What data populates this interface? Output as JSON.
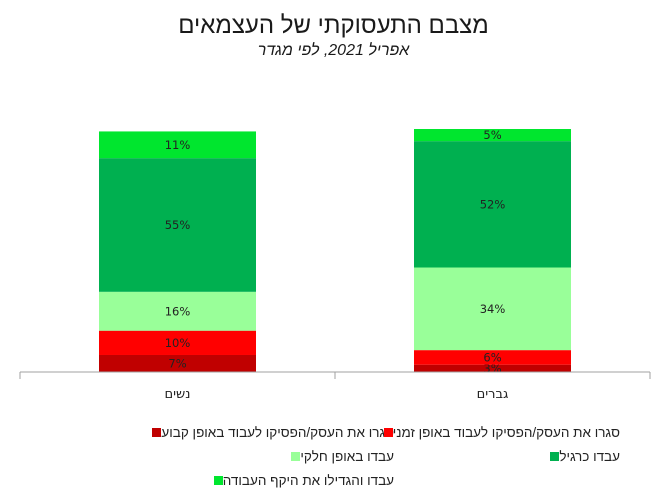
{
  "chart_data": {
    "type": "bar",
    "stacked": true,
    "title": "מצבם התעסוקתי של העצמאים",
    "subtitle": "אפריל 2021, לפי מגדר",
    "categories": [
      "נשים",
      "גברים"
    ],
    "ylim": [
      0,
      100
    ],
    "series": [
      {
        "name": "סגרו את העסק/הפסיקו לעבוד באופן קבוע",
        "color": "#c00000",
        "values": [
          7,
          3
        ],
        "labels": [
          "7%",
          "3%"
        ]
      },
      {
        "name": "סגרו את העסק/הפסיקו לעבוד באופן זמני",
        "color": "#ff0000",
        "values": [
          10,
          6
        ],
        "labels": [
          "10%",
          "6%"
        ]
      },
      {
        "name": "עבדו באופן חלקי",
        "color": "#99ff99",
        "values": [
          16,
          34
        ],
        "labels": [
          "16%",
          "34%"
        ]
      },
      {
        "name": "עבדו כרגיל",
        "color": "#00b050",
        "values": [
          55,
          52
        ],
        "labels": [
          "55%",
          "52%"
        ]
      },
      {
        "name": "עבדו והגדילו את היקף העבודה",
        "color": "#00e62e",
        "values": [
          11,
          5
        ],
        "labels": [
          "11%",
          "5%"
        ]
      }
    ],
    "legend_position": "bottom",
    "grid": false
  }
}
